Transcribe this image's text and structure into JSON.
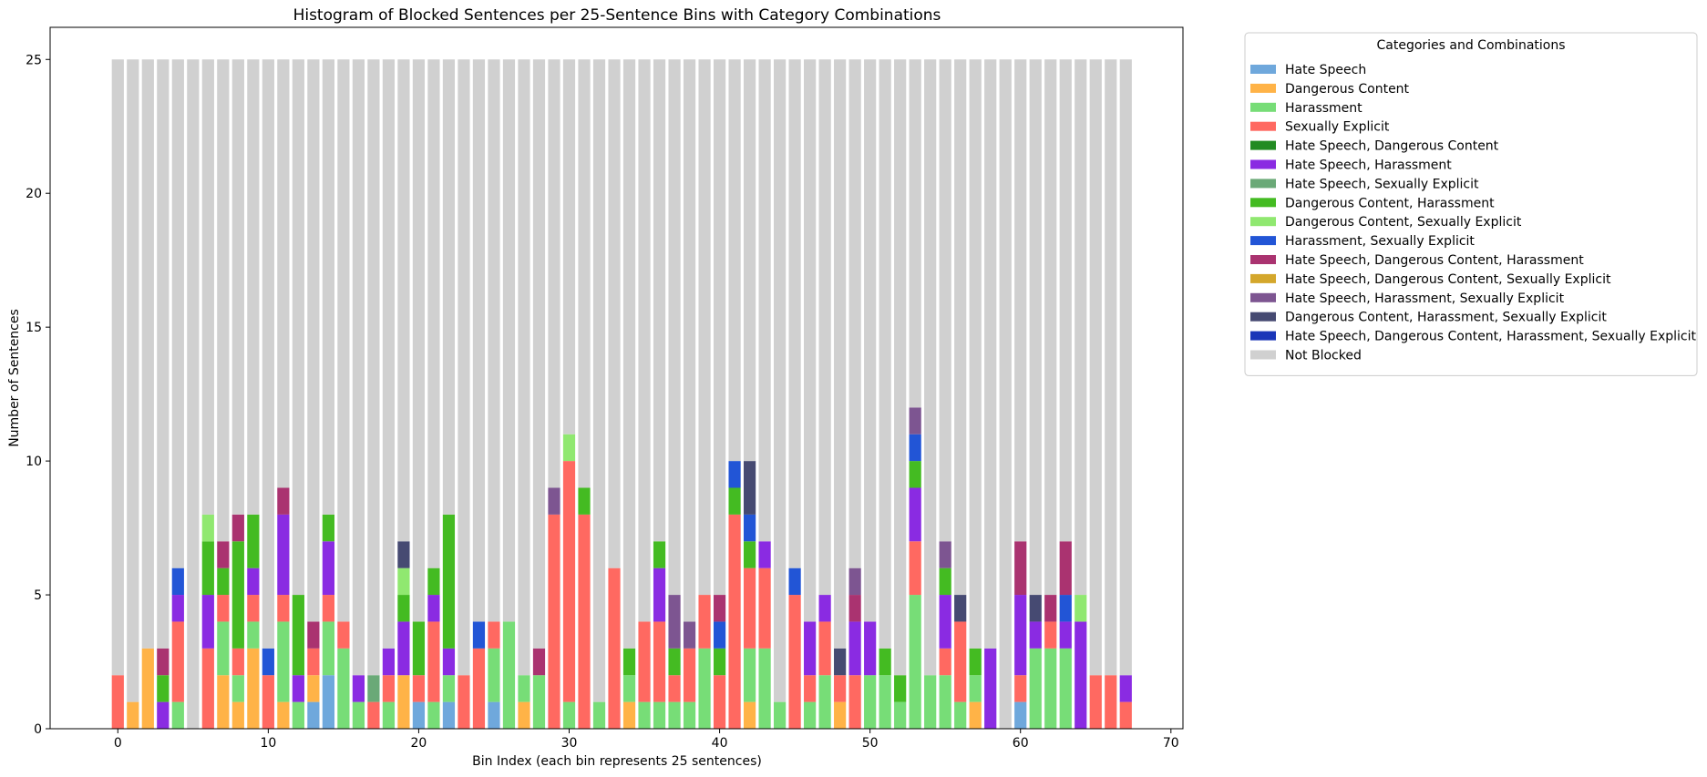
{
  "chart_data": {
    "type": "bar",
    "stacked": true,
    "title": "Histogram of Blocked Sentences per 25-Sentence Bins with Category Combinations",
    "xlabel": "Bin Index (each bin represents 25 sentences)",
    "ylabel": "Number of Sentences",
    "xlim": [
      -4.5,
      70.8
    ],
    "ylim": [
      0,
      26.2
    ],
    "xticks": [
      0,
      10,
      20,
      30,
      40,
      50,
      60,
      70
    ],
    "yticks": [
      0,
      5,
      10,
      15,
      20,
      25
    ],
    "bin_total": 25,
    "legend": {
      "title": "Categories and Combinations",
      "placement": "outside-right"
    },
    "categories": [
      {
        "name": "Hate Speech",
        "color": "#6fa8dc"
      },
      {
        "name": "Dangerous Content",
        "color": "#ffb347"
      },
      {
        "name": "Harassment",
        "color": "#77dd77"
      },
      {
        "name": "Sexually Explicit",
        "color": "#ff6961"
      },
      {
        "name": "Hate Speech, Dangerous Content",
        "color": "#228b22"
      },
      {
        "name": "Hate Speech, Harassment",
        "color": "#8a2be2"
      },
      {
        "name": "Hate Speech, Sexually Explicit",
        "color": "#6aa977"
      },
      {
        "name": "Dangerous Content, Harassment",
        "color": "#44bb22"
      },
      {
        "name": "Dangerous Content, Sexually Explicit",
        "color": "#90e870"
      },
      {
        "name": "Harassment, Sexually Explicit",
        "color": "#2255d6"
      },
      {
        "name": "Hate Speech, Dangerous Content, Harassment",
        "color": "#aa3370"
      },
      {
        "name": "Hate Speech, Dangerous Content, Sexually Explicit",
        "color": "#d4a72c"
      },
      {
        "name": "Hate Speech, Harassment, Sexually Explicit",
        "color": "#7d5591"
      },
      {
        "name": "Dangerous Content, Harassment, Sexually Explicit",
        "color": "#464a72"
      },
      {
        "name": "Hate Speech, Dangerous Content, Harassment, Sexually Explicit",
        "color": "#1a36b8"
      },
      {
        "name": "Not Blocked",
        "color": "#d0d0d0"
      }
    ],
    "bins": [
      [
        [
          3,
          2
        ]
      ],
      [
        [
          1,
          1
        ]
      ],
      [
        [
          1,
          3
        ]
      ],
      [
        [
          5,
          1
        ],
        [
          7,
          1
        ],
        [
          10,
          1
        ]
      ],
      [
        [
          2,
          1
        ],
        [
          3,
          3
        ],
        [
          5,
          1
        ],
        [
          9,
          1
        ]
      ],
      [],
      [
        [
          3,
          3
        ],
        [
          5,
          2
        ],
        [
          7,
          2
        ],
        [
          8,
          1
        ]
      ],
      [
        [
          1,
          2
        ],
        [
          2,
          2
        ],
        [
          3,
          1
        ],
        [
          7,
          1
        ],
        [
          10,
          1
        ]
      ],
      [
        [
          1,
          1
        ],
        [
          2,
          1
        ],
        [
          3,
          1
        ],
        [
          7,
          4
        ],
        [
          10,
          1
        ]
      ],
      [
        [
          1,
          3
        ],
        [
          2,
          1
        ],
        [
          3,
          1
        ],
        [
          5,
          1
        ],
        [
          7,
          2
        ]
      ],
      [
        [
          3,
          2
        ],
        [
          9,
          1
        ]
      ],
      [
        [
          1,
          1
        ],
        [
          2,
          3
        ],
        [
          3,
          1
        ],
        [
          5,
          3
        ],
        [
          10,
          1
        ]
      ],
      [
        [
          2,
          1
        ],
        [
          5,
          1
        ],
        [
          7,
          3
        ]
      ],
      [
        [
          0,
          1
        ],
        [
          1,
          1
        ],
        [
          3,
          1
        ],
        [
          10,
          1
        ]
      ],
      [
        [
          0,
          2
        ],
        [
          2,
          2
        ],
        [
          3,
          1
        ],
        [
          5,
          2
        ],
        [
          7,
          1
        ]
      ],
      [
        [
          2,
          3
        ],
        [
          3,
          1
        ]
      ],
      [
        [
          2,
          1
        ],
        [
          5,
          1
        ]
      ],
      [
        [
          3,
          1
        ],
        [
          6,
          1
        ]
      ],
      [
        [
          2,
          1
        ],
        [
          3,
          1
        ],
        [
          5,
          1
        ]
      ],
      [
        [
          1,
          2
        ],
        [
          5,
          2
        ],
        [
          7,
          1
        ],
        [
          8,
          1
        ],
        [
          13,
          1
        ]
      ],
      [
        [
          0,
          1
        ],
        [
          3,
          1
        ],
        [
          7,
          2
        ]
      ],
      [
        [
          2,
          1
        ],
        [
          3,
          3
        ],
        [
          5,
          1
        ],
        [
          7,
          1
        ]
      ],
      [
        [
          0,
          1
        ],
        [
          2,
          1
        ],
        [
          5,
          1
        ],
        [
          7,
          5
        ]
      ],
      [
        [
          3,
          2
        ]
      ],
      [
        [
          3,
          3
        ],
        [
          9,
          1
        ]
      ],
      [
        [
          0,
          1
        ],
        [
          2,
          2
        ],
        [
          3,
          1
        ]
      ],
      [
        [
          2,
          4
        ]
      ],
      [
        [
          1,
          1
        ],
        [
          2,
          1
        ]
      ],
      [
        [
          2,
          2
        ],
        [
          10,
          1
        ]
      ],
      [
        [
          3,
          8
        ],
        [
          12,
          1
        ]
      ],
      [
        [
          2,
          1
        ],
        [
          3,
          9
        ],
        [
          8,
          1
        ]
      ],
      [
        [
          3,
          8
        ],
        [
          7,
          1
        ]
      ],
      [
        [
          2,
          1
        ]
      ],
      [
        [
          3,
          6
        ]
      ],
      [
        [
          1,
          1
        ],
        [
          2,
          1
        ],
        [
          7,
          1
        ]
      ],
      [
        [
          2,
          1
        ],
        [
          3,
          3
        ]
      ],
      [
        [
          2,
          1
        ],
        [
          3,
          3
        ],
        [
          5,
          2
        ],
        [
          7,
          1
        ]
      ],
      [
        [
          2,
          1
        ],
        [
          3,
          1
        ],
        [
          7,
          1
        ],
        [
          12,
          2
        ]
      ],
      [
        [
          2,
          1
        ],
        [
          3,
          2
        ],
        [
          12,
          1
        ]
      ],
      [
        [
          2,
          3
        ],
        [
          3,
          2
        ]
      ],
      [
        [
          3,
          2
        ],
        [
          7,
          1
        ],
        [
          9,
          1
        ],
        [
          10,
          1
        ]
      ],
      [
        [
          3,
          8
        ],
        [
          7,
          1
        ],
        [
          9,
          1
        ]
      ],
      [
        [
          1,
          1
        ],
        [
          2,
          2
        ],
        [
          3,
          3
        ],
        [
          7,
          1
        ],
        [
          9,
          1
        ],
        [
          13,
          2
        ]
      ],
      [
        [
          2,
          3
        ],
        [
          3,
          3
        ],
        [
          5,
          1
        ]
      ],
      [
        [
          2,
          1
        ]
      ],
      [
        [
          3,
          5
        ],
        [
          9,
          1
        ]
      ],
      [
        [
          2,
          1
        ],
        [
          3,
          1
        ],
        [
          5,
          2
        ]
      ],
      [
        [
          2,
          2
        ],
        [
          3,
          2
        ],
        [
          5,
          1
        ]
      ],
      [
        [
          1,
          1
        ],
        [
          3,
          1
        ],
        [
          13,
          1
        ]
      ],
      [
        [
          3,
          2
        ],
        [
          5,
          2
        ],
        [
          10,
          1
        ],
        [
          12,
          1
        ]
      ],
      [
        [
          2,
          2
        ],
        [
          5,
          2
        ]
      ],
      [
        [
          2,
          2
        ],
        [
          7,
          1
        ]
      ],
      [
        [
          2,
          1
        ],
        [
          7,
          1
        ]
      ],
      [
        [
          2,
          5
        ],
        [
          3,
          2
        ],
        [
          5,
          2
        ],
        [
          7,
          1
        ],
        [
          9,
          1
        ],
        [
          12,
          1
        ]
      ],
      [
        [
          2,
          2
        ]
      ],
      [
        [
          2,
          2
        ],
        [
          3,
          1
        ],
        [
          5,
          2
        ],
        [
          7,
          1
        ],
        [
          12,
          1
        ]
      ],
      [
        [
          2,
          1
        ],
        [
          3,
          3
        ],
        [
          13,
          1
        ]
      ],
      [
        [
          1,
          1
        ],
        [
          2,
          1
        ],
        [
          7,
          1
        ]
      ],
      [
        [
          5,
          3
        ]
      ],
      [],
      [
        [
          0,
          1
        ],
        [
          3,
          1
        ],
        [
          5,
          3
        ],
        [
          10,
          2
        ]
      ],
      [
        [
          2,
          3
        ],
        [
          5,
          1
        ],
        [
          13,
          1
        ]
      ],
      [
        [
          2,
          3
        ],
        [
          3,
          1
        ],
        [
          10,
          1
        ]
      ],
      [
        [
          2,
          3
        ],
        [
          5,
          1
        ],
        [
          9,
          1
        ],
        [
          10,
          2
        ]
      ],
      [
        [
          5,
          4
        ],
        [
          8,
          1
        ]
      ],
      [
        [
          3,
          2
        ]
      ],
      [
        [
          3,
          2
        ]
      ],
      [
        [
          3,
          1
        ],
        [
          5,
          1
        ]
      ]
    ]
  }
}
